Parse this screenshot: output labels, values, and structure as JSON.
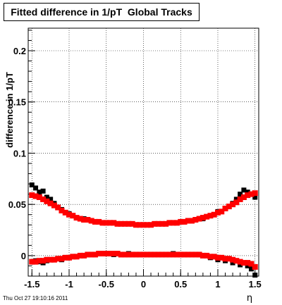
{
  "stamp": "Thu Oct 27 19:10:16 2011",
  "chart_data": {
    "type": "scatter",
    "title": "Fitted difference in 1/pT  Global Tracks",
    "xlabel": "η",
    "ylabel": "difference in 1/pT",
    "xlim": [
      -1.55,
      1.55
    ],
    "ylim": [
      -0.02,
      0.222
    ],
    "x_ticks": [
      "-1.5",
      "-1",
      "-0.5",
      "0",
      "0.5",
      "1",
      "1.5"
    ],
    "x_tick_values": [
      -1.5,
      -1,
      -0.5,
      0,
      0.5,
      1,
      1.5
    ],
    "y_ticks": [
      "0",
      "0.05",
      "0.1",
      "0.15",
      "0.2"
    ],
    "y_tick_values": [
      0,
      0.05,
      0.1,
      0.15,
      0.2
    ],
    "grid": true,
    "colors": {
      "series_black": "#000000",
      "series_red": "#ff0000"
    },
    "series": [
      {
        "color": "#000000",
        "curves": [
          {
            "x": [
              -1.5,
              -1.45,
              -1.4,
              -1.35,
              -1.3,
              -1.25,
              -1.2,
              -1.1,
              -1.0,
              -0.9,
              -0.8,
              -0.6,
              -0.4,
              -0.2,
              0.0,
              0.2,
              0.4,
              0.6,
              0.8,
              0.9,
              1.0,
              1.1,
              1.2,
              1.25,
              1.3,
              1.35,
              1.4,
              1.45,
              1.5
            ],
            "y": [
              0.069,
              0.066,
              0.062,
              0.063,
              0.057,
              0.055,
              0.051,
              0.045,
              0.041,
              0.037,
              0.036,
              0.033,
              0.032,
              0.031,
              0.03,
              0.031,
              0.032,
              0.034,
              0.036,
              0.039,
              0.043,
              0.046,
              0.051,
              0.055,
              0.06,
              0.064,
              0.062,
              0.06,
              0.057
            ]
          },
          {
            "x": [
              -1.5,
              -1.45,
              -1.4,
              -1.35,
              -1.3,
              -1.2,
              -1.1,
              -1.0,
              -0.9,
              -0.8,
              -0.6,
              -0.4,
              -0.2,
              0.0,
              0.2,
              0.4,
              0.6,
              0.8,
              0.9,
              1.0,
              1.1,
              1.2,
              1.3,
              1.4,
              1.45,
              1.5
            ],
            "y": [
              -0.006,
              -0.005,
              -0.006,
              -0.007,
              -0.005,
              -0.004,
              -0.004,
              -0.002,
              -0.001,
              0.0,
              0.002,
              0.001,
              0.002,
              0.001,
              0.001,
              0.002,
              0.001,
              0.0,
              -0.002,
              -0.004,
              -0.005,
              -0.007,
              -0.009,
              -0.01,
              -0.013,
              -0.019
            ]
          }
        ]
      },
      {
        "color": "#ff0000",
        "curves": [
          {
            "x": [
              -1.5,
              -1.45,
              -1.4,
              -1.35,
              -1.3,
              -1.25,
              -1.2,
              -1.15,
              -1.1,
              -1.05,
              -1.0,
              -0.95,
              -0.9,
              -0.85,
              -0.8,
              -0.75,
              -0.7,
              -0.65,
              -0.6,
              -0.55,
              -0.5,
              -0.45,
              -0.4,
              -0.35,
              -0.3,
              -0.25,
              -0.2,
              -0.15,
              -0.1,
              -0.05,
              0.0,
              0.05,
              0.1,
              0.15,
              0.2,
              0.25,
              0.3,
              0.35,
              0.4,
              0.45,
              0.5,
              0.55,
              0.6,
              0.65,
              0.7,
              0.75,
              0.8,
              0.85,
              0.9,
              0.95,
              1.0,
              1.05,
              1.1,
              1.15,
              1.2,
              1.25,
              1.3,
              1.35,
              1.4,
              1.45,
              1.5
            ],
            "y": [
              0.059,
              0.058,
              0.057,
              0.055,
              0.053,
              0.051,
              0.049,
              0.047,
              0.044,
              0.042,
              0.04,
              0.039,
              0.037,
              0.036,
              0.035,
              0.035,
              0.034,
              0.033,
              0.033,
              0.032,
              0.032,
              0.032,
              0.032,
              0.031,
              0.031,
              0.031,
              0.031,
              0.031,
              0.03,
              0.03,
              0.03,
              0.03,
              0.03,
              0.031,
              0.031,
              0.031,
              0.031,
              0.032,
              0.032,
              0.032,
              0.033,
              0.033,
              0.034,
              0.034,
              0.035,
              0.036,
              0.037,
              0.038,
              0.039,
              0.04,
              0.042,
              0.043,
              0.046,
              0.048,
              0.05,
              0.052,
              0.055,
              0.057,
              0.059,
              0.06,
              0.061
            ]
          },
          {
            "x": [
              -1.5,
              -1.45,
              -1.4,
              -1.35,
              -1.3,
              -1.25,
              -1.2,
              -1.15,
              -1.1,
              -1.05,
              -1.0,
              -0.95,
              -0.9,
              -0.85,
              -0.8,
              -0.75,
              -0.7,
              -0.65,
              -0.6,
              -0.55,
              -0.5,
              -0.45,
              -0.4,
              -0.35,
              -0.3,
              -0.25,
              -0.2,
              -0.15,
              -0.1,
              -0.05,
              0.0,
              0.05,
              0.1,
              0.15,
              0.2,
              0.25,
              0.3,
              0.35,
              0.4,
              0.45,
              0.5,
              0.55,
              0.6,
              0.65,
              0.7,
              0.75,
              0.8,
              0.85,
              0.9,
              0.95,
              1.0,
              1.05,
              1.1,
              1.15,
              1.2,
              1.25,
              1.3,
              1.35,
              1.4,
              1.45,
              1.5
            ],
            "y": [
              -0.006,
              -0.006,
              -0.005,
              -0.005,
              -0.004,
              -0.004,
              -0.004,
              -0.003,
              -0.003,
              -0.002,
              -0.002,
              -0.001,
              -0.001,
              0.0,
              0.0,
              0.001,
              0.001,
              0.001,
              0.002,
              0.002,
              0.002,
              0.002,
              0.002,
              0.002,
              0.001,
              0.001,
              0.001,
              0.001,
              0.001,
              0.001,
              0.001,
              0.001,
              0.001,
              0.001,
              0.001,
              0.001,
              0.001,
              0.001,
              0.001,
              0.001,
              0.001,
              0.001,
              0.001,
              0.001,
              0.001,
              0.001,
              0.0,
              0.0,
              -0.001,
              -0.001,
              -0.002,
              -0.002,
              -0.003,
              -0.003,
              -0.004,
              -0.005,
              -0.006,
              -0.007,
              -0.007,
              -0.008,
              -0.011
            ]
          }
        ]
      }
    ]
  }
}
